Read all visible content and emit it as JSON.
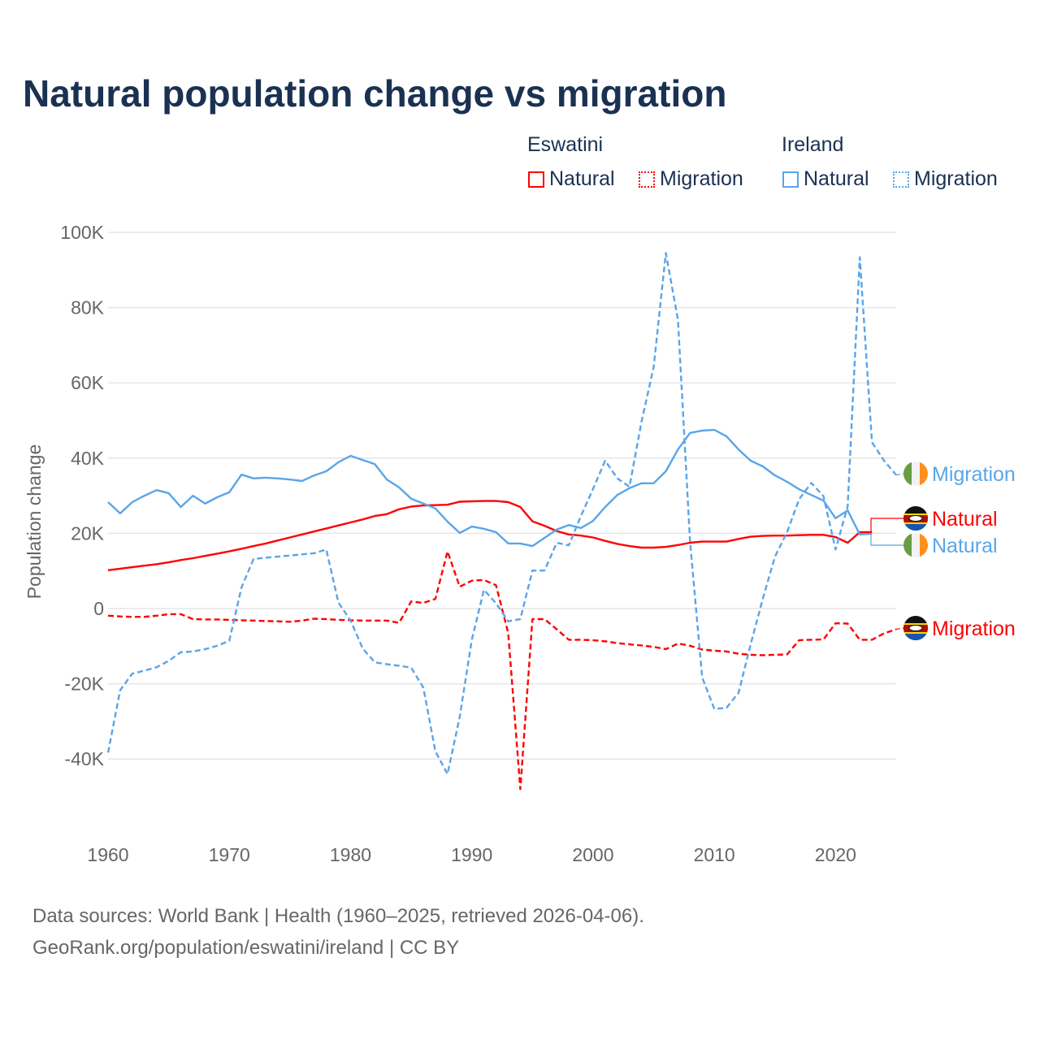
{
  "title": "Natural population change vs migration",
  "legend": {
    "groups": [
      {
        "name": "Eswatini",
        "items": [
          {
            "label": "Natural",
            "style": "solid"
          },
          {
            "label": "Migration",
            "style": "dotted"
          }
        ],
        "color": "#ff0000"
      },
      {
        "name": "Ireland",
        "items": [
          {
            "label": "Natural",
            "style": "solid"
          },
          {
            "label": "Migration",
            "style": "dotted"
          }
        ],
        "color": "#5aa5e8"
      }
    ]
  },
  "footer": {
    "line1": "Data sources: World Bank | Health (1960–2025, retrieved 2026-04-06).",
    "line2": "GeoRank.org/population/eswatini/ireland | CC BY"
  },
  "chart_data": {
    "type": "line",
    "title": "Natural population change vs migration",
    "xlabel": "",
    "ylabel": "Population change",
    "xlim": [
      1960,
      2025
    ],
    "ylim": [
      -50000,
      100000
    ],
    "xticks": [
      1960,
      1970,
      1980,
      1990,
      2000,
      2010,
      2020
    ],
    "xtick_labels": [
      "1960",
      "1970",
      "1980",
      "1990",
      "2000",
      "2010",
      "2020"
    ],
    "yticks": [
      -40000,
      -20000,
      0,
      20000,
      40000,
      60000,
      80000,
      100000
    ],
    "ytick_labels": [
      "-40K",
      "-20K",
      "0",
      "20K",
      "40K",
      "60K",
      "80K",
      "100K"
    ],
    "grid": true,
    "legend_position": "top-right",
    "series": [
      {
        "name": "Eswatini Natural",
        "end_label": "Natural",
        "flag": "eswatini",
        "color": "#ff0000",
        "dash": false,
        "start": 1960,
        "values": [
          10.2,
          10.6,
          11,
          11.4,
          11.8,
          12.3,
          12.9,
          13.4,
          14,
          14.6,
          15.2,
          15.9,
          16.6,
          17.3,
          18.1,
          18.9,
          19.7,
          20.5,
          21.3,
          22.1,
          22.9,
          23.7,
          24.6,
          25.1,
          26.4,
          27.1,
          27.4,
          27.5,
          27.6,
          28.4,
          28.5,
          28.6,
          28.6,
          28.3,
          27,
          23.2,
          22,
          20.6,
          19.7,
          19.4,
          18.9,
          18,
          17.2,
          16.6,
          16.2,
          16.2,
          16.4,
          16.9,
          17.5,
          17.8,
          17.8,
          17.8,
          18.5,
          19.1,
          19.3,
          19.4,
          19.4,
          19.5,
          19.6,
          19.6,
          19,
          17.5,
          20.3,
          20.3
        ]
      },
      {
        "name": "Eswatini Migration",
        "end_label": "Migration",
        "flag": "eswatini",
        "color": "#ff0000",
        "dash": true,
        "start": 1960,
        "values": [
          -1.9,
          -2.1,
          -2.2,
          -2.2,
          -1.9,
          -1.5,
          -1.5,
          -2.8,
          -2.9,
          -2.9,
          -3,
          -3.1,
          -3.2,
          -3.3,
          -3.4,
          -3.5,
          -3.2,
          -2.7,
          -2.8,
          -3,
          -3.1,
          -3.2,
          -3.2,
          -3.2,
          -3.8,
          1.9,
          1.5,
          2.6,
          15.2,
          5.8,
          7.4,
          7.6,
          6.2,
          -6.5,
          -48,
          -2.8,
          -2.8,
          -5.5,
          -8.3,
          -8.3,
          -8.4,
          -8.7,
          -9.2,
          -9.5,
          -9.8,
          -10.2,
          -10.8,
          -9.3,
          -9.9,
          -10.9,
          -11.2,
          -11.4,
          -12,
          -12.3,
          -12.4,
          -12.3,
          -12.2,
          -8.4,
          -8.3,
          -8.2,
          -3.9,
          -4,
          -8.3,
          -8.3,
          -6.6,
          -5.5
        ]
      },
      {
        "name": "Ireland Natural",
        "end_label": "Natural",
        "flag": "ireland",
        "color": "#5aa5e8",
        "dash": false,
        "start": 1960,
        "values": [
          28.3,
          25.3,
          28.3,
          30,
          31.5,
          30.7,
          27,
          30,
          27.9,
          29.6,
          30.9,
          35.6,
          34.6,
          34.8,
          34.6,
          34.3,
          33.9,
          35.4,
          36.5,
          38.9,
          40.6,
          39.5,
          38.4,
          34.3,
          32.2,
          29.2,
          27.9,
          26.6,
          23.1,
          20.1,
          21.8,
          21.2,
          20.3,
          17.3,
          17.3,
          16.6,
          18.8,
          21,
          22.2,
          21.4,
          23.3,
          27,
          30.2,
          32,
          33.3,
          33.3,
          36.5,
          42.3,
          46.7,
          47.3,
          47.5,
          45.8,
          42.3,
          39.3,
          37.8,
          35.4,
          33.7,
          31.7,
          30.2,
          28.7,
          24,
          26.1,
          19.7,
          19.9
        ]
      },
      {
        "name": "Ireland Migration",
        "end_label": "Migration",
        "flag": "ireland",
        "color": "#5aa5e8",
        "dash": true,
        "start": 1960,
        "values": [
          -38.3,
          -21.7,
          -17.3,
          -16.5,
          -15.6,
          -13.9,
          -11.6,
          -11.4,
          -10.8,
          -9.9,
          -8.6,
          5.6,
          13.2,
          13.5,
          13.8,
          14.1,
          14.4,
          14.7,
          15.7,
          1.6,
          -3.2,
          -10.6,
          -14.3,
          -14.8,
          -15.2,
          -15.7,
          -21,
          -38,
          -44,
          -28.8,
          -8.3,
          5,
          1.4,
          -3.4,
          -2.8,
          10.1,
          10.1,
          17.5,
          16.8,
          24.6,
          31.8,
          39.3,
          34.6,
          32.4,
          49.7,
          64.2,
          94.5,
          76.8,
          17.8,
          -18.3,
          -26.7,
          -26.4,
          -22.4,
          -9.5,
          2.6,
          13.8,
          20.3,
          29.1,
          33.4,
          29.9,
          15.7,
          27.2,
          93.4,
          44.2,
          39.3,
          35.5
        ]
      }
    ],
    "value_unit": "thousands"
  }
}
